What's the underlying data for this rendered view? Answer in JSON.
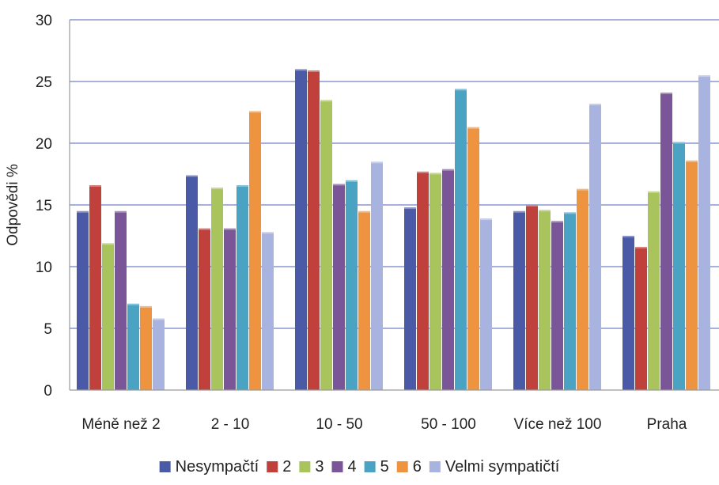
{
  "chart_data": {
    "type": "bar",
    "title": "",
    "xlabel": "",
    "ylabel": "Odpovědi %",
    "ylim": [
      0,
      30
    ],
    "yticks": [
      "0",
      "5",
      "10",
      "15",
      "20",
      "25",
      "30"
    ],
    "grid": true,
    "legend_position": "bottom",
    "categories": [
      "Méně než 2",
      "2 - 10",
      "10 - 50",
      "50 - 100",
      "Více než 100",
      "Praha"
    ],
    "series": [
      {
        "name": "Nesympačtí",
        "color": "#4b5aa6",
        "values": [
          14.5,
          17.4,
          26.0,
          14.8,
          14.5,
          12.5
        ]
      },
      {
        "name": "2",
        "color": "#c0413b",
        "values": [
          16.6,
          13.1,
          25.9,
          17.7,
          15.0,
          11.6
        ]
      },
      {
        "name": "3",
        "color": "#a9c45c",
        "values": [
          11.9,
          16.4,
          23.5,
          17.6,
          14.6,
          16.1
        ]
      },
      {
        "name": "4",
        "color": "#7a5598",
        "values": [
          14.5,
          13.1,
          16.7,
          17.9,
          13.7,
          24.1
        ]
      },
      {
        "name": "5",
        "color": "#4ba3c3",
        "values": [
          7.0,
          16.6,
          17.0,
          24.4,
          14.4,
          20.1
        ]
      },
      {
        "name": "6",
        "color": "#ee9441",
        "values": [
          6.8,
          22.6,
          14.5,
          21.3,
          16.3,
          18.6
        ]
      },
      {
        "name": "Velmi sympatičtí",
        "color": "#a9b3e0",
        "values": [
          5.8,
          12.8,
          18.5,
          13.9,
          23.2,
          25.5
        ]
      }
    ]
  }
}
